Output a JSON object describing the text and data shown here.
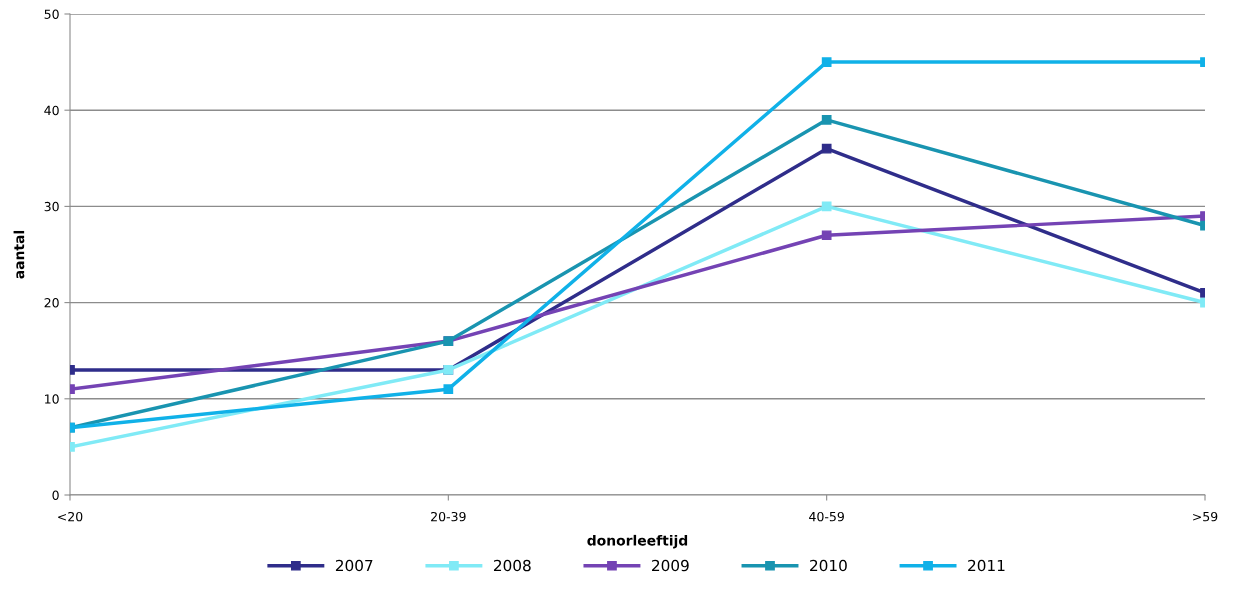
{
  "chart_data": {
    "type": "line",
    "xlabel": "donorleeftijd",
    "ylabel": "aantal",
    "categories": [
      "<20",
      "20-39",
      "40-59",
      ">59"
    ],
    "series": [
      {
        "name": "2007",
        "color": "#2f2d8a",
        "values": [
          13,
          13,
          36,
          21
        ]
      },
      {
        "name": "2008",
        "color": "#80eaf6",
        "values": [
          5,
          13,
          30,
          20
        ]
      },
      {
        "name": "2009",
        "color": "#7443b4",
        "values": [
          11,
          16,
          27,
          29
        ]
      },
      {
        "name": "2010",
        "color": "#1994b0",
        "values": [
          7,
          16,
          39,
          28
        ]
      },
      {
        "name": "2011",
        "color": "#10b1e8",
        "values": [
          7,
          11,
          45,
          45
        ]
      }
    ],
    "ylim": [
      0,
      50
    ],
    "yticks": [
      0,
      10,
      20,
      30,
      40,
      50
    ],
    "grid": "y",
    "legend": "bottom",
    "marker": "square",
    "line_style": "solid"
  }
}
